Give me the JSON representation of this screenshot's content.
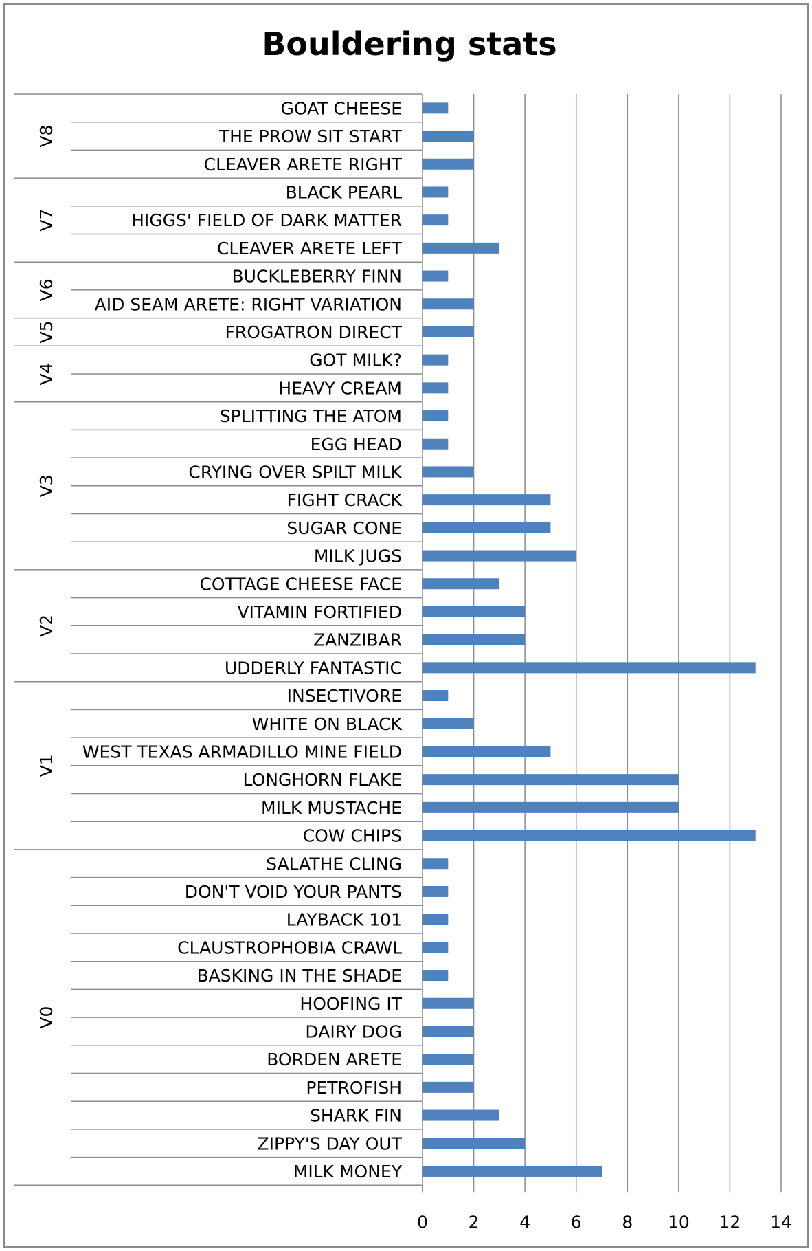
{
  "chart_data": {
    "type": "bar",
    "orientation": "horizontal",
    "title": "Bouldering stats",
    "xlim": [
      0,
      14
    ],
    "xticks": [
      0,
      2,
      4,
      6,
      8,
      10,
      12,
      14
    ],
    "grid": "vertical",
    "bar_color": "#4f81bd",
    "groups": [
      {
        "grade": "V8",
        "routes": [
          {
            "name": "GOAT CHEESE",
            "value": 1
          },
          {
            "name": "THE PROW SIT START",
            "value": 2
          },
          {
            "name": "CLEAVER ARETE RIGHT",
            "value": 2
          }
        ]
      },
      {
        "grade": "V7",
        "routes": [
          {
            "name": "BLACK PEARL",
            "value": 1
          },
          {
            "name": "HIGGS' FIELD OF DARK MATTER",
            "value": 1
          },
          {
            "name": "CLEAVER ARETE LEFT",
            "value": 3
          }
        ]
      },
      {
        "grade": "V6",
        "routes": [
          {
            "name": "BUCKLEBERRY FINN",
            "value": 1
          },
          {
            "name": "AID SEAM ARETE: RIGHT VARIATION",
            "value": 2
          }
        ]
      },
      {
        "grade": "V5",
        "routes": [
          {
            "name": "FROGATRON DIRECT",
            "value": 2
          }
        ]
      },
      {
        "grade": "V4",
        "routes": [
          {
            "name": "GOT MILK?",
            "value": 1
          },
          {
            "name": "HEAVY CREAM",
            "value": 1
          }
        ]
      },
      {
        "grade": "V3",
        "routes": [
          {
            "name": "SPLITTING THE ATOM",
            "value": 1
          },
          {
            "name": "EGG HEAD",
            "value": 1
          },
          {
            "name": "CRYING OVER SPILT MILK",
            "value": 2
          },
          {
            "name": "FIGHT CRACK",
            "value": 5
          },
          {
            "name": "SUGAR CONE",
            "value": 5
          },
          {
            "name": "MILK JUGS",
            "value": 6
          }
        ]
      },
      {
        "grade": "V2",
        "routes": [
          {
            "name": "COTTAGE CHEESE FACE",
            "value": 3
          },
          {
            "name": "VITAMIN FORTIFIED",
            "value": 4
          },
          {
            "name": "ZANZIBAR",
            "value": 4
          },
          {
            "name": "UDDERLY FANTASTIC",
            "value": 13
          }
        ]
      },
      {
        "grade": "V1",
        "routes": [
          {
            "name": "INSECTIVORE",
            "value": 1
          },
          {
            "name": "WHITE ON BLACK",
            "value": 2
          },
          {
            "name": "WEST TEXAS ARMADILLO MINE FIELD",
            "value": 5
          },
          {
            "name": "LONGHORN FLAKE",
            "value": 10
          },
          {
            "name": "MILK MUSTACHE",
            "value": 10
          },
          {
            "name": "COW CHIPS",
            "value": 13
          }
        ]
      },
      {
        "grade": "V0",
        "routes": [
          {
            "name": "SALATHE CLING",
            "value": 1
          },
          {
            "name": "DON'T VOID YOUR PANTS",
            "value": 1
          },
          {
            "name": "LAYBACK 101",
            "value": 1
          },
          {
            "name": "CLAUSTROPHOBIA CRAWL",
            "value": 1
          },
          {
            "name": "BASKING IN THE SHADE",
            "value": 1
          },
          {
            "name": "HOOFING IT",
            "value": 2
          },
          {
            "name": "DAIRY DOG",
            "value": 2
          },
          {
            "name": "BORDEN ARETE",
            "value": 2
          },
          {
            "name": "PETROFISH",
            "value": 2
          },
          {
            "name": "SHARK FIN",
            "value": 3
          },
          {
            "name": "ZIPPY'S DAY OUT",
            "value": 4
          },
          {
            "name": "MILK MONEY",
            "value": 7
          }
        ]
      }
    ]
  }
}
